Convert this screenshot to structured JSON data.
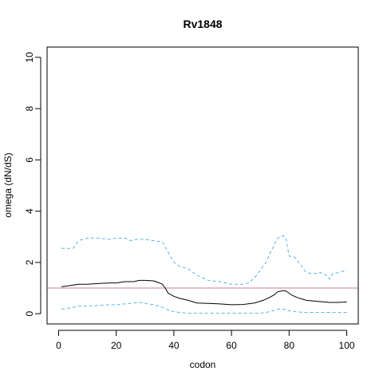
{
  "chart_data": {
    "type": "line",
    "title": "Rv1848",
    "xlabel": "codon",
    "ylabel": "omega (dN/dS)",
    "xlim": [
      -4,
      104
    ],
    "ylim": [
      -0.4,
      10.4
    ],
    "xticks": [
      0,
      20,
      40,
      60,
      80,
      100
    ],
    "yticks": [
      0,
      2,
      4,
      6,
      8,
      10
    ],
    "grid": false,
    "legend": "none",
    "reference_line": {
      "y": 1,
      "color": "#cc79a7"
    },
    "series": [
      {
        "style": "solid",
        "color": "#000000",
        "x": [
          1,
          3,
          5,
          7,
          10,
          14,
          18,
          20,
          23,
          26,
          28,
          30,
          33,
          35,
          36,
          37,
          38,
          40,
          42,
          45,
          48,
          52,
          56,
          60,
          64,
          68,
          71,
          73,
          75,
          76,
          78,
          79,
          81,
          83,
          86,
          90,
          94,
          97,
          100
        ],
        "y": [
          1.05,
          1.08,
          1.12,
          1.15,
          1.15,
          1.18,
          1.2,
          1.2,
          1.25,
          1.25,
          1.3,
          1.3,
          1.28,
          1.2,
          1.15,
          1.0,
          0.8,
          0.68,
          0.6,
          0.52,
          0.42,
          0.4,
          0.38,
          0.35,
          0.36,
          0.42,
          0.52,
          0.62,
          0.75,
          0.85,
          0.9,
          0.88,
          0.72,
          0.62,
          0.52,
          0.48,
          0.44,
          0.44,
          0.46
        ]
      },
      {
        "style": "dashed",
        "color": "#56b4e9",
        "x": [
          1,
          5,
          7,
          10,
          14,
          18,
          20,
          23,
          25,
          27,
          30,
          33,
          36,
          38,
          40,
          42,
          45,
          48,
          52,
          56,
          60,
          64,
          66,
          68,
          70,
          72,
          74,
          76,
          78,
          79,
          80,
          82,
          84,
          86,
          88,
          91,
          93,
          94,
          95,
          97,
          100
        ],
        "y": [
          2.55,
          2.55,
          2.85,
          2.95,
          2.95,
          2.9,
          2.95,
          2.95,
          2.85,
          2.9,
          2.9,
          2.85,
          2.8,
          2.4,
          2.0,
          1.85,
          1.75,
          1.5,
          1.3,
          1.25,
          1.15,
          1.15,
          1.2,
          1.4,
          1.7,
          2.0,
          2.5,
          2.95,
          3.05,
          2.9,
          2.25,
          2.2,
          1.9,
          1.6,
          1.55,
          1.6,
          1.5,
          1.35,
          1.55,
          1.6,
          1.7
        ]
      },
      {
        "style": "dashed",
        "color": "#56b4e9",
        "x": [
          1,
          3,
          5,
          7,
          10,
          14,
          18,
          20,
          23,
          26,
          28,
          30,
          33,
          36,
          38,
          40,
          42,
          45,
          50,
          55,
          60,
          65,
          70,
          72,
          74,
          76,
          78,
          80,
          82,
          85,
          90,
          95,
          100
        ],
        "y": [
          0.18,
          0.2,
          0.25,
          0.3,
          0.3,
          0.32,
          0.35,
          0.35,
          0.38,
          0.42,
          0.45,
          0.4,
          0.35,
          0.25,
          0.15,
          0.08,
          0.05,
          0.02,
          0.02,
          0.02,
          0.02,
          0.02,
          0.02,
          0.05,
          0.1,
          0.18,
          0.18,
          0.12,
          0.08,
          0.05,
          0.05,
          0.05,
          0.05
        ]
      }
    ]
  }
}
